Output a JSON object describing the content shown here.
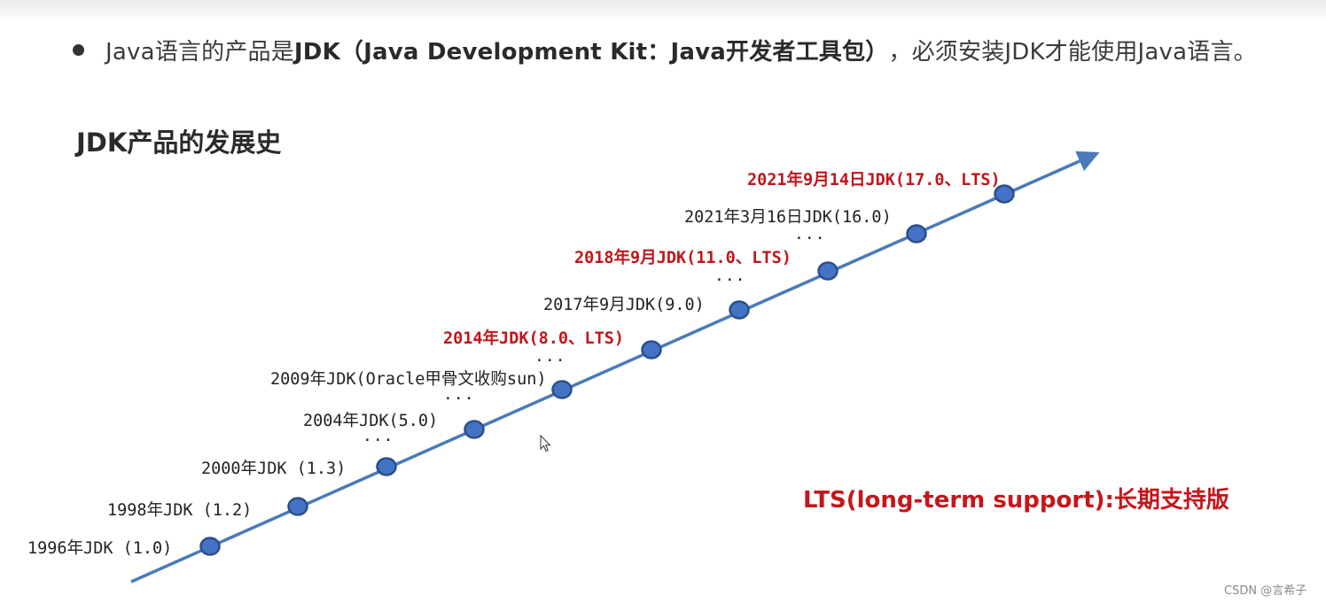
{
  "headline": {
    "prefix": "Java语言的产品是 ",
    "bold": "JDK（Java Development Kit：Java开发者工具包）",
    "suffix": "，必须安装JDK才能使用Java语言。"
  },
  "section_title": "JDK产品的发展史",
  "timeline": {
    "line_color": "#4a7ab8",
    "node_fill": "#4472c4",
    "node_stroke": "#2b4f8a",
    "lts_color": "#c0161b",
    "milestones": [
      {
        "label": "1996年JDK (1.0)",
        "lts": false
      },
      {
        "label": "1998年JDK (1.2)",
        "lts": false
      },
      {
        "label": "2000年JDK (1.3)",
        "lts": false
      },
      {
        "label": "2004年JDK(5.0)",
        "lts": false
      },
      {
        "label": "2009年JDK(Oracle甲骨文收购sun)",
        "lts": false
      },
      {
        "label": "2014年JDK(8.0、LTS)",
        "lts": true
      },
      {
        "label": "2017年9月JDK(9.0)",
        "lts": false
      },
      {
        "label": "2018年9月JDK(11.0、LTS)",
        "lts": true
      },
      {
        "label": "2021年3月16日JDK(16.0)",
        "lts": false
      },
      {
        "label": "2021年9月14日JDK(17.0、LTS)",
        "lts": true
      }
    ],
    "ellipses": [
      "...",
      "...",
      "...",
      "...",
      "..."
    ]
  },
  "lts_note": "LTS(long-term support):长期支持版",
  "watermark": "CSDN @言希子"
}
